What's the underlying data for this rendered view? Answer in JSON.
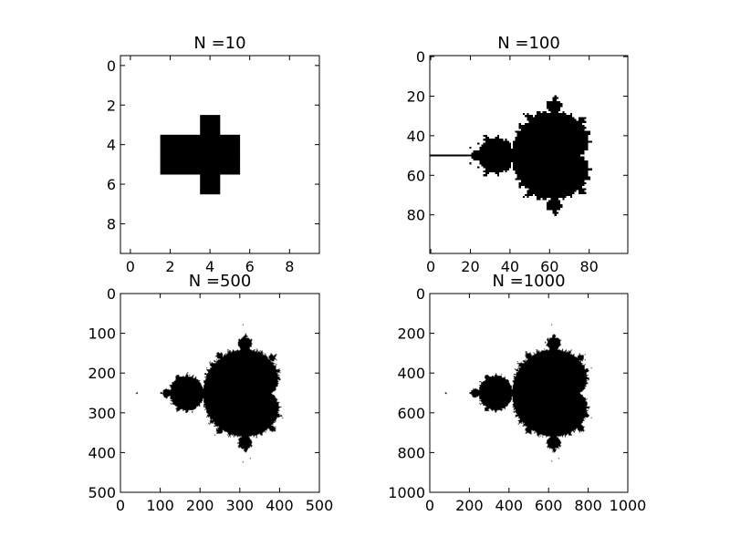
{
  "chart_data": [
    {
      "type": "heatmap",
      "title": "N =10",
      "N": 10,
      "xlim": [
        -0.5,
        9.5
      ],
      "ylim": [
        9.5,
        -0.5
      ],
      "xticks": [
        "0",
        "2",
        "4",
        "6",
        "8"
      ],
      "yticks": [
        "0",
        "2",
        "4",
        "6",
        "8"
      ],
      "colormap": "binary",
      "filled_color": "#000000",
      "empty_color": "#ffffff",
      "cells": [
        [
          4,
          3
        ],
        [
          2,
          4
        ],
        [
          3,
          4
        ],
        [
          4,
          4
        ],
        [
          5,
          4
        ],
        [
          2,
          5
        ],
        [
          3,
          5
        ],
        [
          4,
          5
        ],
        [
          5,
          5
        ],
        [
          4,
          6
        ]
      ]
    },
    {
      "type": "heatmap",
      "title": "N =100",
      "N": 100,
      "xlim": [
        -0.5,
        99.5
      ],
      "ylim": [
        99.5,
        -0.5
      ],
      "xticks": [
        "0",
        "20",
        "40",
        "60",
        "80"
      ],
      "yticks": [
        "0",
        "20",
        "40",
        "60",
        "80"
      ],
      "colormap": "binary",
      "filled_color": "#000000",
      "empty_color": "#ffffff"
    },
    {
      "type": "heatmap",
      "title": "N =500",
      "N": 500,
      "xlim": [
        0,
        500
      ],
      "ylim": [
        500,
        0
      ],
      "xticks": [
        "0",
        "100",
        "200",
        "300",
        "400",
        "500"
      ],
      "yticks": [
        "0",
        "100",
        "200",
        "300",
        "400",
        "500"
      ],
      "colormap": "binary",
      "filled_color": "#000000",
      "empty_color": "#ffffff"
    },
    {
      "type": "heatmap",
      "title": "N =1000",
      "N": 1000,
      "xlim": [
        0,
        1000
      ],
      "ylim": [
        1000,
        0
      ],
      "xticks": [
        "0",
        "200",
        "400",
        "600",
        "800",
        "1000"
      ],
      "yticks": [
        "0",
        "200",
        "400",
        "600",
        "800",
        "1000"
      ],
      "colormap": "binary",
      "filled_color": "#000000",
      "empty_color": "#ffffff"
    }
  ]
}
